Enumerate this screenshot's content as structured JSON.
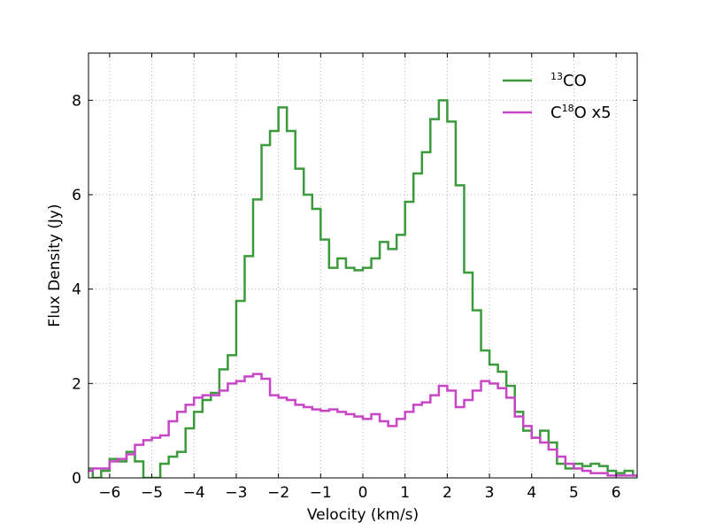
{
  "chart_data": {
    "type": "line",
    "style": "step",
    "xlabel": "Velocity (km/s)",
    "ylabel": "Flux Density (Jy)",
    "xlim": [
      -6.5,
      6.5
    ],
    "ylim": [
      0,
      9
    ],
    "xticks": [
      -6,
      -5,
      -4,
      -3,
      -2,
      -1,
      0,
      1,
      2,
      3,
      4,
      5,
      6
    ],
    "xtick_labels": [
      "−6",
      "−5",
      "−4",
      "−3",
      "−2",
      "−1",
      "0",
      "1",
      "2",
      "3",
      "4",
      "5",
      "6"
    ],
    "yticks": [
      0,
      2,
      4,
      6,
      8
    ],
    "ytick_labels": [
      "0",
      "2",
      "4",
      "6",
      "8"
    ],
    "grid": true,
    "legend_position": "top-right",
    "x": [
      -6.5,
      -6.3,
      -6.1,
      -5.9,
      -5.7,
      -5.5,
      -5.3,
      -5.1,
      -4.9,
      -4.7,
      -4.5,
      -4.3,
      -4.1,
      -3.9,
      -3.7,
      -3.5,
      -3.3,
      -3.1,
      -2.9,
      -2.7,
      -2.5,
      -2.3,
      -2.1,
      -1.9,
      -1.7,
      -1.5,
      -1.3,
      -1.1,
      -0.9,
      -0.7,
      -0.5,
      -0.3,
      -0.1,
      0.1,
      0.3,
      0.5,
      0.7,
      0.9,
      1.1,
      1.3,
      1.5,
      1.7,
      1.9,
      2.1,
      2.3,
      2.5,
      2.7,
      2.9,
      3.1,
      3.3,
      3.5,
      3.7,
      3.9,
      4.1,
      4.3,
      4.5,
      4.7,
      4.9,
      5.1,
      5.3,
      5.5,
      5.7,
      5.9,
      6.1,
      6.3,
      6.5
    ],
    "series": [
      {
        "name_pre": "",
        "name_sup": "13",
        "name_post": "CO",
        "color": "#3b9a3b",
        "values": [
          0.2,
          0.0,
          0.15,
          0.4,
          0.35,
          0.55,
          0.35,
          0.0,
          0.0,
          0.3,
          0.45,
          0.55,
          1.05,
          1.4,
          1.65,
          1.8,
          2.3,
          2.6,
          3.75,
          4.7,
          5.9,
          7.05,
          7.35,
          7.85,
          7.35,
          6.55,
          6.0,
          5.7,
          5.05,
          4.45,
          4.65,
          4.45,
          4.4,
          4.45,
          4.65,
          5.0,
          4.85,
          5.15,
          5.85,
          6.45,
          6.9,
          7.6,
          8.0,
          7.55,
          6.2,
          4.35,
          3.55,
          2.7,
          2.4,
          2.25,
          1.95,
          1.4,
          1.0,
          0.85,
          1.0,
          0.75,
          0.3,
          0.2,
          0.3,
          0.25,
          0.3,
          0.25,
          0.15,
          0.1,
          0.15,
          0.05
        ]
      },
      {
        "name_pre": "C",
        "name_sup": "18",
        "name_post": "O x5",
        "color": "#c845c8",
        "values": [
          0.15,
          0.2,
          0.2,
          0.35,
          0.4,
          0.5,
          0.7,
          0.8,
          0.85,
          0.9,
          1.2,
          1.4,
          1.55,
          1.7,
          1.75,
          1.75,
          1.85,
          2.0,
          2.05,
          2.15,
          2.2,
          2.1,
          1.75,
          1.7,
          1.65,
          1.55,
          1.5,
          1.45,
          1.42,
          1.45,
          1.4,
          1.35,
          1.3,
          1.25,
          1.35,
          1.2,
          1.1,
          1.25,
          1.4,
          1.55,
          1.6,
          1.75,
          1.95,
          1.85,
          1.5,
          1.65,
          1.85,
          2.05,
          2.0,
          1.9,
          1.7,
          1.3,
          1.1,
          0.85,
          0.75,
          0.6,
          0.45,
          0.3,
          0.2,
          0.15,
          0.1,
          0.1,
          0.05,
          0.05,
          0.05,
          0.05
        ]
      }
    ]
  }
}
